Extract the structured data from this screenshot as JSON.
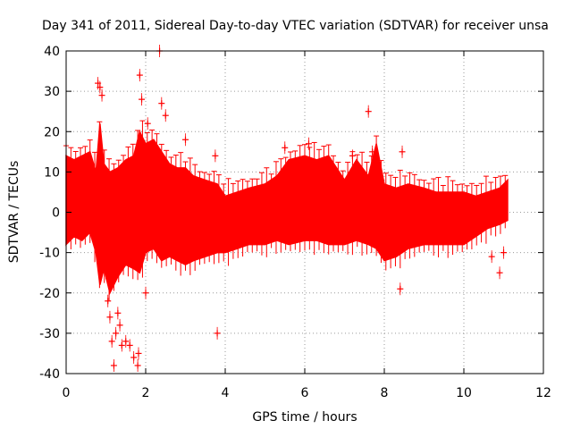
{
  "chart_data": {
    "type": "scatter",
    "title": "Day 341 of 2011, Sidereal Day-to-day VTEC variation (SDTVAR) for receiver unsa",
    "xlabel": "GPS time / hours",
    "ylabel": "SDTVAR / TECUs",
    "xlim": [
      0,
      12
    ],
    "ylim": [
      -40,
      40
    ],
    "xticks": [
      0,
      2,
      4,
      6,
      8,
      10,
      12
    ],
    "yticks": [
      -40,
      -30,
      -20,
      -10,
      0,
      10,
      20,
      30,
      40
    ],
    "grid": true,
    "series": [
      {
        "name": "SDTVAR",
        "color": "#ff0000",
        "marker": "+",
        "error_bars": true,
        "band_x": [
          0.0,
          0.2,
          0.4,
          0.6,
          0.75,
          0.85,
          0.95,
          1.1,
          1.3,
          1.5,
          1.7,
          1.85,
          2.0,
          2.2,
          2.4,
          2.6,
          2.8,
          3.0,
          3.2,
          3.5,
          3.8,
          4.0,
          4.3,
          4.6,
          5.0,
          5.3,
          5.6,
          6.0,
          6.3,
          6.6,
          7.0,
          7.3,
          7.6,
          7.8,
          8.0,
          8.3,
          8.6,
          9.0,
          9.3,
          9.6,
          10.0,
          10.3,
          10.6,
          10.9,
          11.1
        ],
        "band_upper": [
          14,
          13,
          14,
          15,
          10,
          22,
          12,
          10,
          11,
          13,
          14,
          20,
          17,
          18,
          15,
          12,
          11,
          11,
          9,
          8,
          7,
          4,
          5,
          6,
          7,
          9,
          13,
          14,
          13,
          14,
          8,
          13,
          9,
          17,
          7,
          6,
          7,
          6,
          5,
          5,
          5,
          4,
          5,
          6,
          8
        ],
        "band_lower": [
          -8,
          -6,
          -7,
          -5,
          -10,
          -18,
          -14,
          -20,
          -16,
          -13,
          -14,
          -15,
          -10,
          -9,
          -12,
          -11,
          -12,
          -13,
          -12,
          -11,
          -10,
          -10,
          -9,
          -8,
          -8,
          -7,
          -8,
          -7,
          -7,
          -8,
          -8,
          -7,
          -8,
          -9,
          -12,
          -11,
          -9,
          -8,
          -8,
          -8,
          -8,
          -6,
          -4,
          -3,
          -2
        ],
        "outliers_x": [
          0.8,
          0.85,
          0.9,
          1.0,
          1.05,
          1.1,
          1.15,
          1.2,
          1.25,
          1.3,
          1.35,
          1.4,
          1.5,
          1.6,
          1.7,
          1.8,
          1.82,
          1.85,
          1.9,
          2.0,
          2.05,
          2.35,
          2.4,
          2.5,
          3.0,
          3.75,
          3.8,
          5.5,
          6.1,
          7.2,
          7.6,
          7.7,
          8.4,
          8.45,
          10.7,
          10.9,
          11.0
        ],
        "outliers_y": [
          32,
          31,
          29,
          -15,
          -22,
          -26,
          -32,
          -38,
          -30,
          -25,
          -28,
          -33,
          -32,
          -33,
          -36,
          -38,
          -35,
          34,
          28,
          -20,
          22,
          40,
          27,
          24,
          18,
          14,
          -30,
          16,
          17,
          14,
          25,
          15,
          -19,
          15,
          -11,
          -15,
          -10
        ]
      }
    ]
  }
}
